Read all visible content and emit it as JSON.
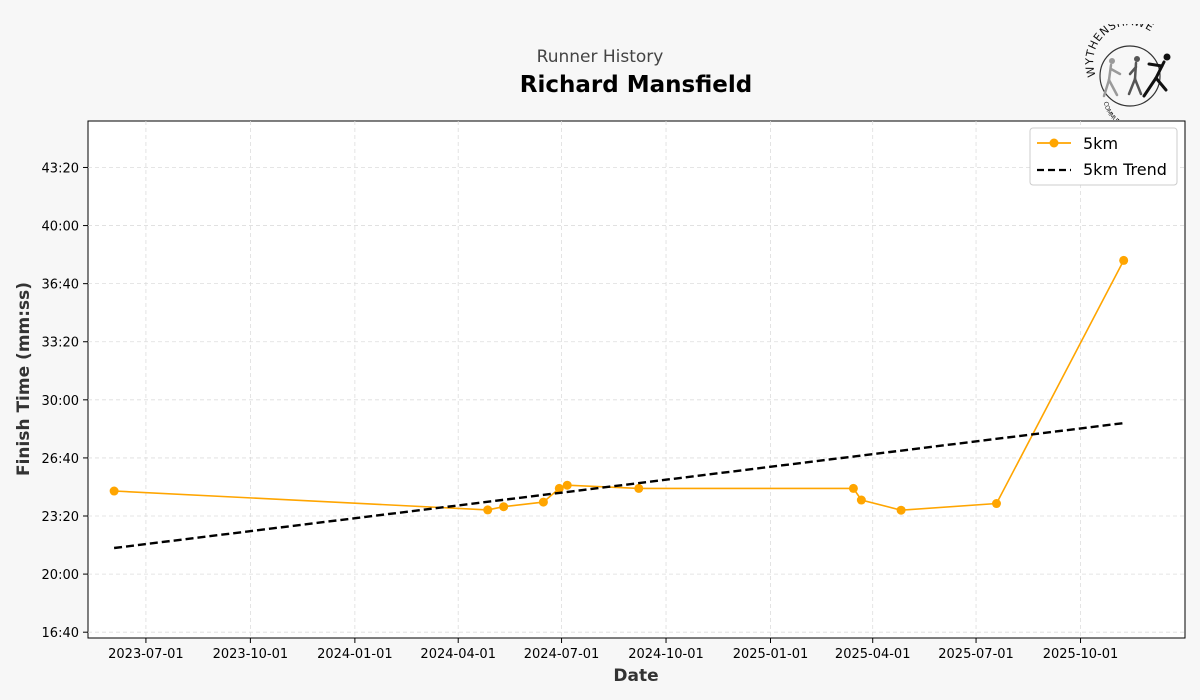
{
  "header": {
    "subtitle": "Runner History",
    "title": "Richard Mansfield",
    "logo_top_text": "WYTHENSHAWE",
    "logo_bottom_text": "COMMUNITY RUN"
  },
  "colors": {
    "series": "#FFA500",
    "trend": "#000000",
    "grid": "#dddddd",
    "background": "#f7f7f7"
  },
  "chart_data": {
    "type": "line",
    "title": "Richard Mansfield",
    "subtitle": "Runner History",
    "xlabel": "Date",
    "ylabel": "Finish Time (mm:ss)",
    "xlim": [
      "2023-05-11",
      "2026-01-01"
    ],
    "ylim": [
      "16:20",
      "46:00"
    ],
    "x_ticks": [
      "2023-07-01",
      "2023-10-01",
      "2024-01-01",
      "2024-04-01",
      "2024-07-01",
      "2024-10-01",
      "2025-01-01",
      "2025-04-01",
      "2025-07-01",
      "2025-10-01"
    ],
    "y_ticks": [
      "16:40",
      "20:00",
      "23:20",
      "26:40",
      "30:00",
      "33:20",
      "36:40",
      "40:00",
      "43:20"
    ],
    "grid": true,
    "legend_position": "top-right",
    "series": [
      {
        "name": "5km",
        "style": "solid-markers",
        "color": "#FFA500",
        "points": [
          {
            "x": "2023-06-03",
            "y": "24:46"
          },
          {
            "x": "2024-04-27",
            "y": "23:41"
          },
          {
            "x": "2024-05-11",
            "y": "23:52"
          },
          {
            "x": "2024-06-15",
            "y": "24:08"
          },
          {
            "x": "2024-06-29",
            "y": "24:55"
          },
          {
            "x": "2024-07-06",
            "y": "25:06"
          },
          {
            "x": "2024-09-07",
            "y": "24:55"
          },
          {
            "x": "2025-03-15",
            "y": "24:55"
          },
          {
            "x": "2025-03-22",
            "y": "24:15"
          },
          {
            "x": "2025-04-26",
            "y": "23:40"
          },
          {
            "x": "2025-07-19",
            "y": "24:03"
          },
          {
            "x": "2025-11-08",
            "y": "38:00"
          }
        ]
      },
      {
        "name": "5km Trend",
        "style": "dashed",
        "color": "#000000",
        "points": [
          {
            "x": "2023-06-03",
            "y": "21:30"
          },
          {
            "x": "2025-11-08",
            "y": "28:40"
          }
        ]
      }
    ]
  }
}
